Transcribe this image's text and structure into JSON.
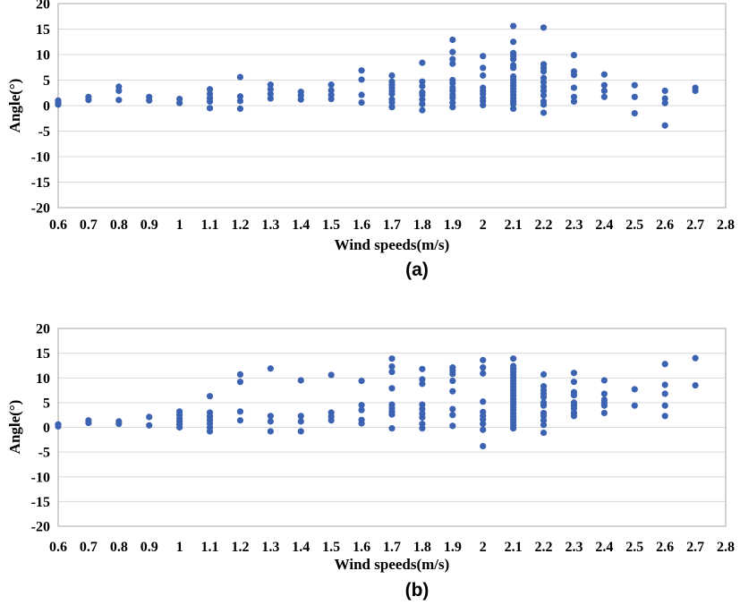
{
  "figure": {
    "background": "#ffffff",
    "point_color": "#3B63B1",
    "gridline_color": "#D9D9D9",
    "border_color": "#A6A6A6",
    "text_color": "#000000"
  },
  "chart_data": [
    {
      "type": "scatter",
      "caption": "(a)",
      "title": "",
      "xlabel": "Wind speeds(m/s)",
      "ylabel": "Angle(°)",
      "xlim": [
        0.6,
        2.8
      ],
      "ylim": [
        -20,
        20
      ],
      "grid": "horizontal",
      "legend": "none",
      "xtick_labels": [
        "0.6",
        "0.7",
        "0.8",
        "0.9",
        "1",
        "1.1",
        "1.2",
        "1.3",
        "1.4",
        "1.5",
        "1.6",
        "1.7",
        "1.8",
        "1.9",
        "2",
        "2.1",
        "2.2",
        "2.3",
        "2.4",
        "2.5",
        "2.6",
        "2.7",
        "2.8"
      ],
      "ytick_values": [
        20,
        15,
        10,
        5,
        0,
        -5,
        -10,
        -15,
        -20
      ],
      "series": [
        {
          "x": 0.6,
          "ys": [
            1.0,
            0.6,
            0.2
          ]
        },
        {
          "x": 0.7,
          "ys": [
            1.7,
            1.1
          ]
        },
        {
          "x": 0.8,
          "ys": [
            3.7,
            2.9,
            1.1
          ]
        },
        {
          "x": 0.9,
          "ys": [
            1.7,
            1.0
          ]
        },
        {
          "x": 1.0,
          "ys": [
            1.3,
            0.5
          ]
        },
        {
          "x": 1.1,
          "ys": [
            3.2,
            2.3,
            1.5,
            0.8,
            -0.5
          ]
        },
        {
          "x": 1.2,
          "ys": [
            5.6,
            1.8,
            0.9,
            -0.6
          ]
        },
        {
          "x": 1.3,
          "ys": [
            4.1,
            3.2,
            2.3,
            1.4
          ]
        },
        {
          "x": 1.4,
          "ys": [
            2.7,
            2.0,
            1.2
          ]
        },
        {
          "x": 1.5,
          "ys": [
            4.1,
            3.0,
            2.1,
            1.3
          ]
        },
        {
          "x": 1.6,
          "ys": [
            6.9,
            5.1,
            2.1,
            0.6
          ]
        },
        {
          "x": 1.7,
          "ys": [
            5.9,
            4.7,
            4.1,
            3.5,
            2.9,
            2.3,
            1.2,
            0.6,
            -0.3
          ]
        },
        {
          "x": 1.8,
          "ys": [
            8.4,
            4.7,
            3.8,
            2.6,
            2.1,
            1.2,
            0.3,
            -0.9
          ]
        },
        {
          "x": 1.9,
          "ys": [
            12.9,
            10.5,
            9.1,
            8.2,
            5.0,
            4.4,
            3.5,
            2.9,
            2.1,
            1.5,
            0.6,
            -0.3
          ]
        },
        {
          "x": 2.0,
          "ys": [
            9.7,
            7.4,
            5.9,
            3.5,
            2.9,
            2.3,
            1.5,
            0.9,
            0.1
          ]
        },
        {
          "x": 2.1,
          "ys": [
            15.6,
            12.5,
            10.3,
            9.7,
            9.1,
            7.9,
            7.4,
            5.7,
            5.1,
            4.5,
            3.9,
            3.3,
            2.7,
            2.1,
            1.5,
            0.9,
            0.3,
            -0.6
          ]
        },
        {
          "x": 2.2,
          "ys": [
            15.3,
            8.1,
            7.4,
            6.7,
            5.4,
            4.6,
            3.7,
            2.9,
            2.0,
            0.8,
            0.2,
            -1.4
          ]
        },
        {
          "x": 2.3,
          "ys": [
            9.9,
            6.7,
            6.0,
            3.5,
            1.7,
            0.8
          ]
        },
        {
          "x": 2.4,
          "ys": [
            6.1,
            4.0,
            2.9,
            1.7
          ]
        },
        {
          "x": 2.5,
          "ys": [
            4.0,
            1.7,
            -1.5
          ]
        },
        {
          "x": 2.6,
          "ys": [
            2.9,
            1.4,
            0.5,
            -3.9
          ]
        },
        {
          "x": 2.7,
          "ys": [
            3.5,
            2.9
          ]
        }
      ]
    },
    {
      "type": "scatter",
      "caption": "(b)",
      "title": "",
      "xlabel": "Wind speeds(m/s)",
      "ylabel": "Angle(°)",
      "xlim": [
        0.6,
        2.8
      ],
      "ylim": [
        -20,
        20
      ],
      "grid": "horizontal",
      "legend": "none",
      "xtick_labels": [
        "0.6",
        "0.7",
        "0.8",
        "0.9",
        "1",
        "1.1",
        "1.2",
        "1.3",
        "1.4",
        "1.5",
        "1.6",
        "1.7",
        "1.8",
        "1.9",
        "2",
        "2.1",
        "2.2",
        "2.3",
        "2.4",
        "2.5",
        "2.6",
        "2.7",
        "2.8"
      ],
      "ytick_values": [
        20,
        15,
        10,
        5,
        0,
        -5,
        -10,
        -15,
        -20
      ],
      "series": [
        {
          "x": 0.6,
          "ys": [
            0.6,
            0.2
          ]
        },
        {
          "x": 0.7,
          "ys": [
            1.4,
            0.9
          ]
        },
        {
          "x": 0.8,
          "ys": [
            1.2,
            0.7
          ]
        },
        {
          "x": 0.9,
          "ys": [
            2.1,
            0.4
          ]
        },
        {
          "x": 1.0,
          "ys": [
            3.2,
            2.5,
            1.8,
            1.2,
            0.6,
            0.0
          ]
        },
        {
          "x": 1.1,
          "ys": [
            6.3,
            3.0,
            2.2,
            1.5,
            0.8,
            0.0,
            -0.8
          ]
        },
        {
          "x": 1.2,
          "ys": [
            10.7,
            9.2,
            3.2,
            1.4
          ]
        },
        {
          "x": 1.3,
          "ys": [
            11.9,
            2.3,
            1.2,
            -0.8
          ]
        },
        {
          "x": 1.4,
          "ys": [
            9.5,
            2.3,
            1.2,
            -0.8
          ]
        },
        {
          "x": 1.5,
          "ys": [
            10.6,
            3.0,
            2.2,
            1.4
          ]
        },
        {
          "x": 1.6,
          "ys": [
            9.4,
            4.5,
            3.5,
            1.5,
            0.8
          ]
        },
        {
          "x": 1.7,
          "ys": [
            13.9,
            12.3,
            11.2,
            7.9,
            4.6,
            3.9,
            3.2,
            2.6,
            -0.2
          ]
        },
        {
          "x": 1.8,
          "ys": [
            11.8,
            9.7,
            8.8,
            4.6,
            3.7,
            2.8,
            2.0,
            0.7,
            -0.2
          ]
        },
        {
          "x": 1.9,
          "ys": [
            12.1,
            11.5,
            10.8,
            9.4,
            7.3,
            3.7,
            2.5,
            0.3
          ]
        },
        {
          "x": 2.0,
          "ys": [
            13.6,
            12.1,
            10.9,
            5.2,
            3.1,
            2.3,
            1.6,
            0.7,
            -0.5,
            -3.8
          ]
        },
        {
          "x": 2.1,
          "ys": [
            13.9,
            12.4,
            11.8,
            11.2,
            10.6,
            10.0,
            9.4,
            8.8,
            8.2,
            7.6,
            7.0,
            6.4,
            5.8,
            5.2,
            4.6,
            4.0,
            3.4,
            2.8,
            2.2,
            1.6,
            1.0,
            0.4,
            -0.2
          ]
        },
        {
          "x": 2.2,
          "ys": [
            10.7,
            8.3,
            7.5,
            6.8,
            6.1,
            5.0,
            4.4,
            2.9,
            2.3,
            1.4,
            0.5,
            -1.1
          ]
        },
        {
          "x": 2.3,
          "ys": [
            11.0,
            9.2,
            7.1,
            6.5,
            5.0,
            4.4,
            3.8,
            2.9,
            2.3
          ]
        },
        {
          "x": 2.4,
          "ys": [
            9.5,
            6.8,
            5.6,
            5.0,
            4.4,
            2.9
          ]
        },
        {
          "x": 2.5,
          "ys": [
            7.7,
            4.4
          ]
        },
        {
          "x": 2.6,
          "ys": [
            12.8,
            8.6,
            6.8,
            4.4,
            2.3
          ]
        },
        {
          "x": 2.7,
          "ys": [
            14.0,
            8.5
          ]
        }
      ]
    }
  ]
}
